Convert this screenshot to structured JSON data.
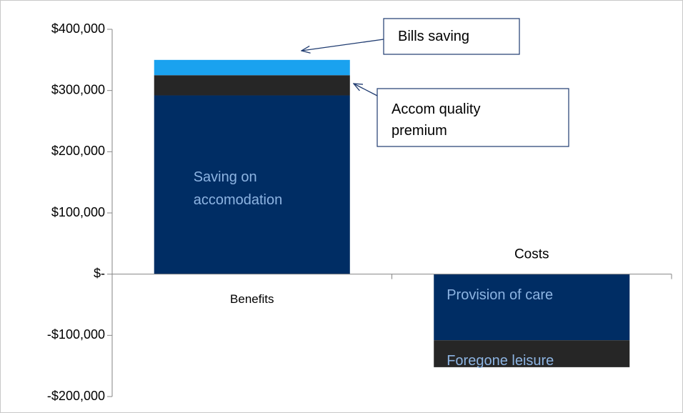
{
  "chart_data": {
    "type": "bar",
    "stacked": true,
    "categories": [
      "Benefits",
      "Costs"
    ],
    "series": [
      {
        "name": "Saving on accomodation",
        "color": "#002d64",
        "values": [
          292000,
          null
        ]
      },
      {
        "name": "Accom quality premium",
        "color": "#262626",
        "values": [
          33000,
          null
        ]
      },
      {
        "name": "Bills saving",
        "color": "#1aa2ef",
        "values": [
          25000,
          null
        ]
      },
      {
        "name": "Provision of care",
        "color": "#002d64",
        "values": [
          null,
          -108000
        ]
      },
      {
        "name": "Foregone leisure",
        "color": "#262626",
        "values": [
          null,
          -44000
        ]
      }
    ],
    "ylim": [
      -200000,
      400000
    ],
    "yticks": [
      {
        "value": -200000,
        "label": "-$200,000"
      },
      {
        "value": -100000,
        "label": "-$100,000"
      },
      {
        "value": 0,
        "label": "$-"
      },
      {
        "value": 100000,
        "label": "$100,000"
      },
      {
        "value": 200000,
        "label": "$200,000"
      },
      {
        "value": 300000,
        "label": "$300,000"
      },
      {
        "value": 400000,
        "label": "$400,000"
      }
    ],
    "grid": false
  }
}
